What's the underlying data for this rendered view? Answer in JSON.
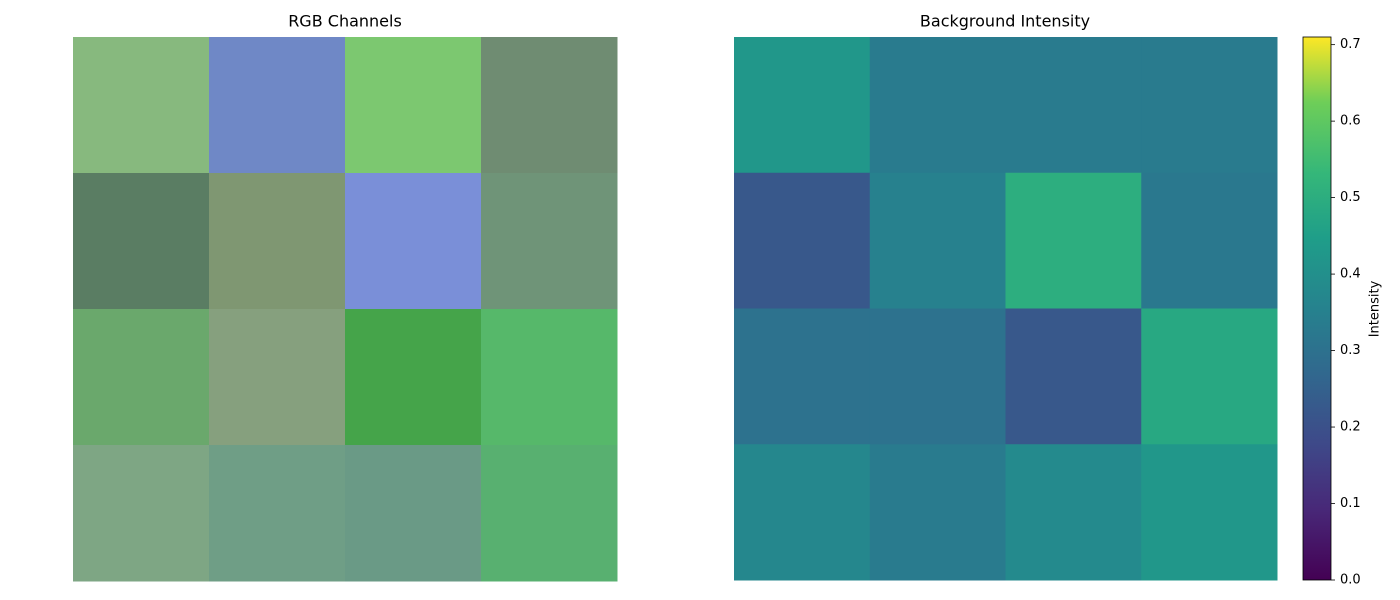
{
  "chart_data": [
    {
      "type": "rgb-image",
      "title": "RGB Channels",
      "tile_colors": [
        [
          "#87b97e",
          "#6f88c6",
          "#7cc870",
          "#6f8c72"
        ],
        [
          "#5a7d63",
          "#7f9772",
          "#7a8fd8",
          "#6f9478"
        ],
        [
          "#6aa86c",
          "#86a07e",
          "#45a44a",
          "#56b86a"
        ],
        [
          "#7ea684",
          "#6f9e86",
          "#6a9a86",
          "#58b070"
        ]
      ]
    },
    {
      "type": "heatmap",
      "title": "Background Intensity",
      "colormap": "viridis",
      "values": [
        [
          0.42,
          0.33,
          0.33,
          0.33
        ],
        [
          0.22,
          0.35,
          0.5,
          0.32
        ],
        [
          0.3,
          0.3,
          0.22,
          0.48
        ],
        [
          0.37,
          0.33,
          0.38,
          0.42
        ]
      ],
      "colorbar_label": "Intensity",
      "ylim": [
        0,
        0.71
      ],
      "yticks": [
        {
          "value": 0,
          "label": "0.0"
        },
        0.1,
        0.2,
        0.3,
        0.4,
        0.5,
        0.6,
        0.7
      ]
    }
  ]
}
